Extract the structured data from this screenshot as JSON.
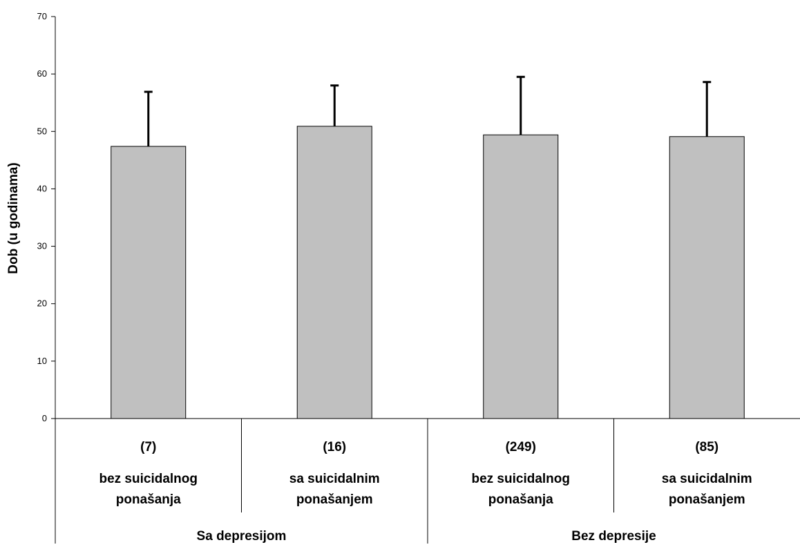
{
  "chart_data": {
    "type": "bar",
    "title": "",
    "ylabel": "Dob (u godinama)",
    "xlabel": "",
    "ylim": [
      0,
      70
    ],
    "yticks": [
      0,
      10,
      20,
      30,
      40,
      50,
      60,
      70
    ],
    "grid": false,
    "legend": "none",
    "bar_color": "#c0c0c0",
    "bar_edge_color": "#000000",
    "categories": [
      {
        "count": "(7)",
        "label_line1": "bez suicidalnog",
        "label_line2": "ponašanja"
      },
      {
        "count": "(16)",
        "label_line1": "sa suicidalnim",
        "label_line2": "ponašanjem"
      },
      {
        "count": "(249)",
        "label_line1": "bez suicidalnog",
        "label_line2": "ponašanja"
      },
      {
        "count": "(85)",
        "label_line1": "sa suicidalnim",
        "label_line2": "ponašanjem"
      }
    ],
    "values": [
      47.4,
      50.9,
      49.4,
      49.1
    ],
    "error_upper": [
      56.9,
      58.0,
      59.5,
      58.6
    ],
    "groups": [
      {
        "label": "Sa depresijom",
        "span": [
          0,
          1
        ]
      },
      {
        "label": "Bez depresije",
        "span": [
          2,
          3
        ]
      }
    ]
  }
}
